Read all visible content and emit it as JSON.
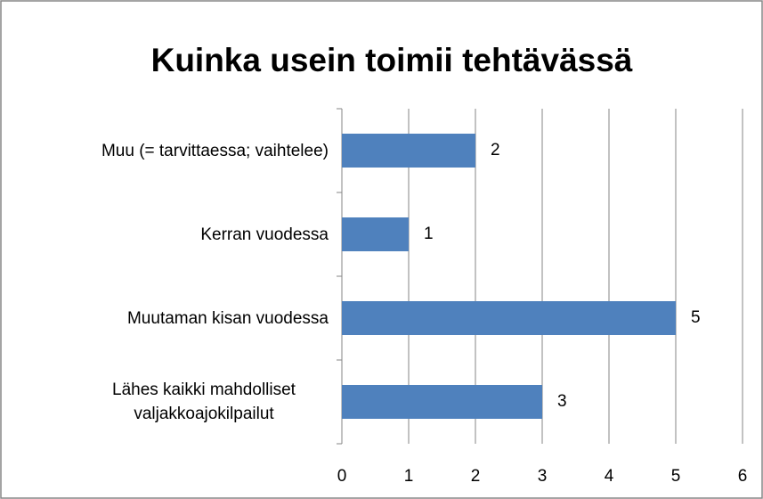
{
  "chart_data": {
    "type": "bar",
    "orientation": "horizontal",
    "title": "Kuinka usein toimii tehtävässä",
    "categories": [
      "Muu (= tarvittaessa; vaihtelee)",
      "Kerran vuodessa",
      "Muutaman kisan vuodessa",
      "Lähes kaikki mahdolliset valjakkoajokilpailut"
    ],
    "values": [
      2,
      1,
      5,
      3
    ],
    "color": "#4f81bd",
    "xlim": [
      0,
      6
    ],
    "xticks": [
      0,
      1,
      2,
      3,
      4,
      5,
      6
    ],
    "grid": true
  }
}
